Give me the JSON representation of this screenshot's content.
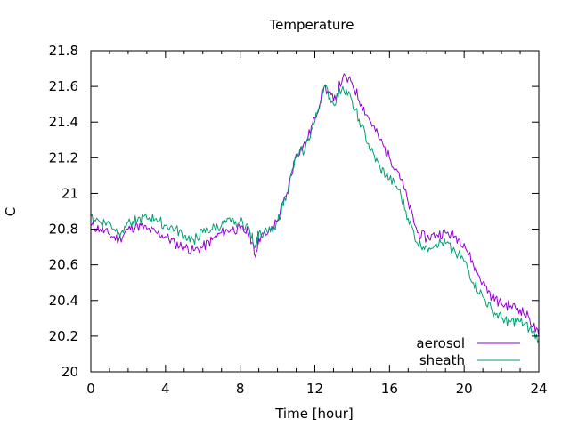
{
  "chart_data": {
    "type": "line",
    "title": "Temperature",
    "xlabel": "Time [hour]",
    "ylabel": "C",
    "xlim": [
      0,
      24
    ],
    "ylim": [
      20,
      21.8
    ],
    "xticks": [
      0,
      4,
      8,
      12,
      16,
      20,
      24
    ],
    "yticks": [
      20,
      20.2,
      20.4,
      20.6,
      20.8,
      21,
      21.2,
      21.4,
      21.6,
      21.8
    ],
    "xtick_labels": [
      "0",
      "4",
      "8",
      "12",
      "16",
      "20",
      "24"
    ],
    "ytick_labels": [
      "20",
      "20.2",
      "20.4",
      "20.6",
      "20.8",
      "21",
      "21.2",
      "21.4",
      "21.6",
      "21.8"
    ],
    "grid": false,
    "legend_position": "bottom-right",
    "series": [
      {
        "name": "aerosol",
        "color": "#9400d3",
        "x": [
          0,
          0.5,
          1,
          1.5,
          2,
          2.5,
          3,
          3.5,
          4,
          4.5,
          5,
          5.5,
          6,
          6.5,
          7,
          7.5,
          8,
          8.5,
          8.8,
          9,
          9.5,
          10,
          10.5,
          11,
          11.5,
          12,
          12.5,
          13,
          13.5,
          14,
          14.5,
          15,
          15.5,
          16,
          16.5,
          17,
          17.5,
          18,
          18.5,
          19,
          19.5,
          20,
          20.5,
          21,
          21.5,
          22,
          22.5,
          23,
          23.5,
          24
        ],
        "y": [
          20.82,
          20.8,
          20.77,
          20.74,
          20.8,
          20.82,
          20.8,
          20.78,
          20.76,
          20.72,
          20.7,
          20.68,
          20.7,
          20.74,
          20.78,
          20.8,
          20.8,
          20.78,
          20.65,
          20.75,
          20.78,
          20.85,
          21.0,
          21.22,
          21.28,
          21.42,
          21.6,
          21.52,
          21.65,
          21.62,
          21.5,
          21.4,
          21.3,
          21.2,
          21.12,
          20.95,
          20.78,
          20.75,
          20.77,
          20.78,
          20.76,
          20.72,
          20.6,
          20.5,
          20.42,
          20.38,
          20.37,
          20.35,
          20.3,
          20.2
        ]
      },
      {
        "name": "sheath",
        "color": "#009e73",
        "x": [
          0,
          0.5,
          1,
          1.5,
          2,
          2.5,
          3,
          3.5,
          4,
          4.5,
          5,
          5.5,
          6,
          6.5,
          7,
          7.5,
          8,
          8.5,
          8.8,
          9,
          9.5,
          10,
          10.5,
          11,
          11.5,
          12,
          12.5,
          13,
          13.5,
          14,
          14.5,
          15,
          15.5,
          16,
          16.5,
          17,
          17.5,
          18,
          18.5,
          19,
          19.5,
          20,
          20.5,
          21,
          21.5,
          22,
          22.5,
          23,
          23.5,
          24
        ],
        "y": [
          20.87,
          20.84,
          20.83,
          20.78,
          20.84,
          20.85,
          20.86,
          20.86,
          20.82,
          20.8,
          20.76,
          20.74,
          20.78,
          20.8,
          20.82,
          20.84,
          20.84,
          20.8,
          20.7,
          20.78,
          20.78,
          20.84,
          21.0,
          21.2,
          21.26,
          21.4,
          21.6,
          21.5,
          21.6,
          21.52,
          21.38,
          21.24,
          21.14,
          21.08,
          21.02,
          20.86,
          20.72,
          20.7,
          20.72,
          20.72,
          20.68,
          20.62,
          20.5,
          20.42,
          20.34,
          20.3,
          20.28,
          20.28,
          20.24,
          20.18
        ]
      }
    ]
  }
}
